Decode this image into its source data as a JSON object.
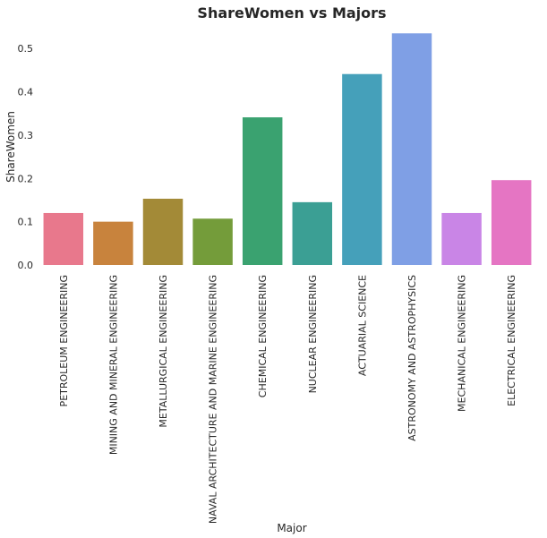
{
  "chart_data": {
    "type": "bar",
    "title": "ShareWomen vs Majors",
    "xlabel": "Major",
    "ylabel": "ShareWomen",
    "ylim": [
      0,
      0.55
    ],
    "yticks": [
      "0.0",
      "0.1",
      "0.2",
      "0.3",
      "0.4",
      "0.5"
    ],
    "grid": false,
    "categories": [
      "PETROLEUM ENGINEERING",
      "MINING AND MINERAL ENGINEERING",
      "METALLURGICAL ENGINEERING",
      "NAVAL ARCHITECTURE AND MARINE ENGINEERING",
      "CHEMICAL ENGINEERING",
      "NUCLEAR ENGINEERING",
      "ACTUARIAL SCIENCE",
      "ASTRONOMY AND ASTROPHYSICS",
      "MECHANICAL ENGINEERING",
      "ELECTRICAL ENGINEERING"
    ],
    "values": [
      0.12,
      0.1,
      0.153,
      0.107,
      0.341,
      0.145,
      0.441,
      0.535,
      0.12,
      0.196
    ],
    "colors": [
      "#e8788c",
      "#c8833d",
      "#a38a37",
      "#749c3a",
      "#3aa270",
      "#3b9f94",
      "#45a0ba",
      "#7f9fe5",
      "#c985e6",
      "#e575c3"
    ]
  }
}
